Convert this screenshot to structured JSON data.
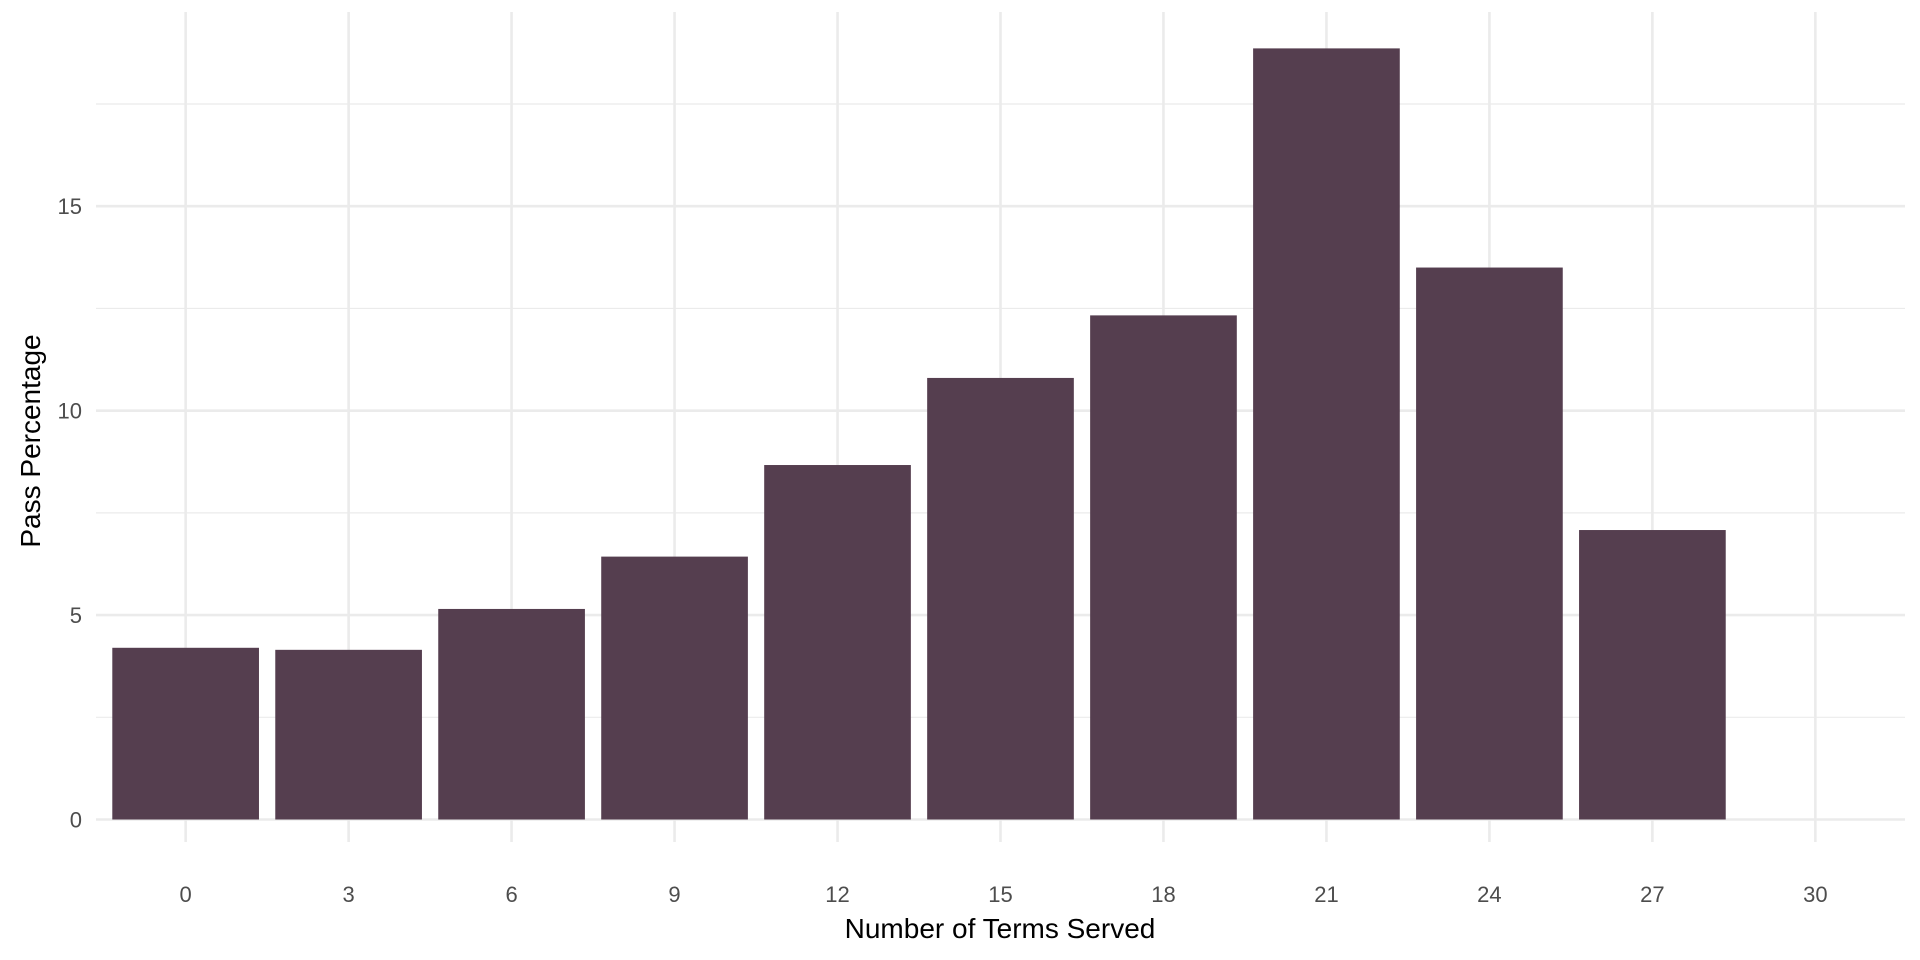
{
  "chart_data": {
    "type": "bar",
    "title": "",
    "xlabel": "Number of Terms Served",
    "ylabel": "Pass Percentage",
    "x": [
      0,
      3,
      6,
      9,
      12,
      15,
      18,
      21,
      24,
      27
    ],
    "values": [
      4.2,
      4.15,
      5.15,
      6.43,
      8.67,
      10.8,
      12.33,
      18.86,
      13.5,
      7.08
    ],
    "xlim": [
      -1.65,
      31.65
    ],
    "ylim": [
      -0.55,
      19.75
    ],
    "x_ticks": [
      0,
      3,
      6,
      9,
      12,
      15,
      18,
      21,
      24,
      27,
      30
    ],
    "y_ticks": [
      0,
      5,
      10,
      15
    ],
    "grid": true,
    "legend": "none",
    "bar_color": "#553e4f",
    "grid_color": "#ebebeb"
  }
}
